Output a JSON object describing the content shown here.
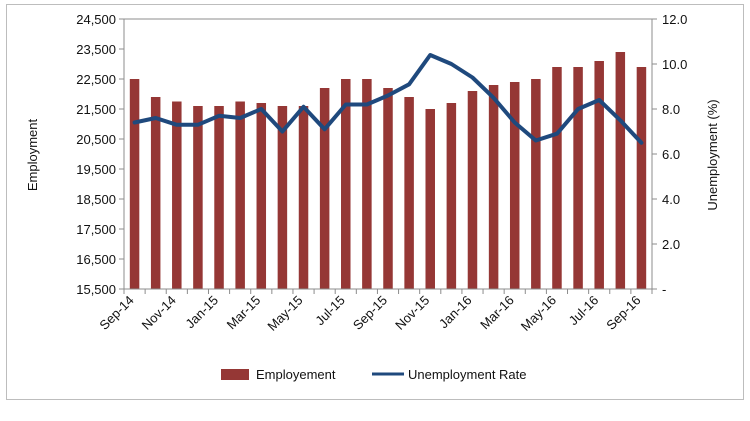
{
  "chart_data": {
    "type": "bar",
    "title": "",
    "xlabel": "",
    "ylabel": "Employment",
    "y2label": "Unemployment  (%)",
    "ylim": [
      15500,
      24500
    ],
    "y2lim": [
      0,
      12
    ],
    "grid": false,
    "legend_position": "bottom",
    "categories": [
      "Sep-14",
      "Oct-14",
      "Nov-14",
      "Dec-14",
      "Jan-15",
      "Feb-15",
      "Mar-15",
      "Apr-15",
      "May-15",
      "Jun-15",
      "Jul-15",
      "Aug-15",
      "Sep-15",
      "Oct-15",
      "Nov-15",
      "Dec-15",
      "Jan-16",
      "Feb-16",
      "Mar-16",
      "Apr-16",
      "May-16",
      "Jun-16",
      "Jul-16",
      "Aug-16",
      "Sep-16"
    ],
    "x_tick_labels": [
      "Sep-14",
      "Nov-14",
      "Jan-15",
      "Mar-15",
      "May-15",
      "Jul-15",
      "Sep-15",
      "Nov-15",
      "Jan-16",
      "Mar-16",
      "May-16",
      "Jul-16",
      "Sep-16"
    ],
    "y_tick_labels": [
      "24,500",
      "23,500",
      "22,500",
      "21,500",
      "20,500",
      "19,500",
      "18,500",
      "17,500",
      "16,500",
      "15,500"
    ],
    "y2_tick_labels": [
      "12.0",
      "10.0",
      "8.0",
      "6.0",
      "4.0",
      "2.0",
      "-"
    ],
    "series": [
      {
        "name": "Employement",
        "type": "bar",
        "axis": "left",
        "color": "#953735",
        "values": [
          22500,
          21900,
          21750,
          21600,
          21600,
          21750,
          21700,
          21600,
          21600,
          22200,
          22500,
          22500,
          22200,
          21900,
          21500,
          21700,
          22100,
          22300,
          22400,
          22500,
          22900,
          22900,
          23100,
          23400,
          22900
        ]
      },
      {
        "name": "Unemployment Rate",
        "type": "line",
        "axis": "right",
        "color": "#1f497d",
        "values": [
          7.4,
          7.6,
          7.3,
          7.3,
          7.7,
          7.6,
          8.0,
          7.0,
          8.1,
          7.1,
          8.2,
          8.2,
          8.6,
          9.1,
          10.4,
          10.0,
          9.4,
          8.5,
          7.4,
          6.6,
          6.9,
          8.0,
          8.4,
          7.5,
          6.5
        ]
      }
    ]
  }
}
